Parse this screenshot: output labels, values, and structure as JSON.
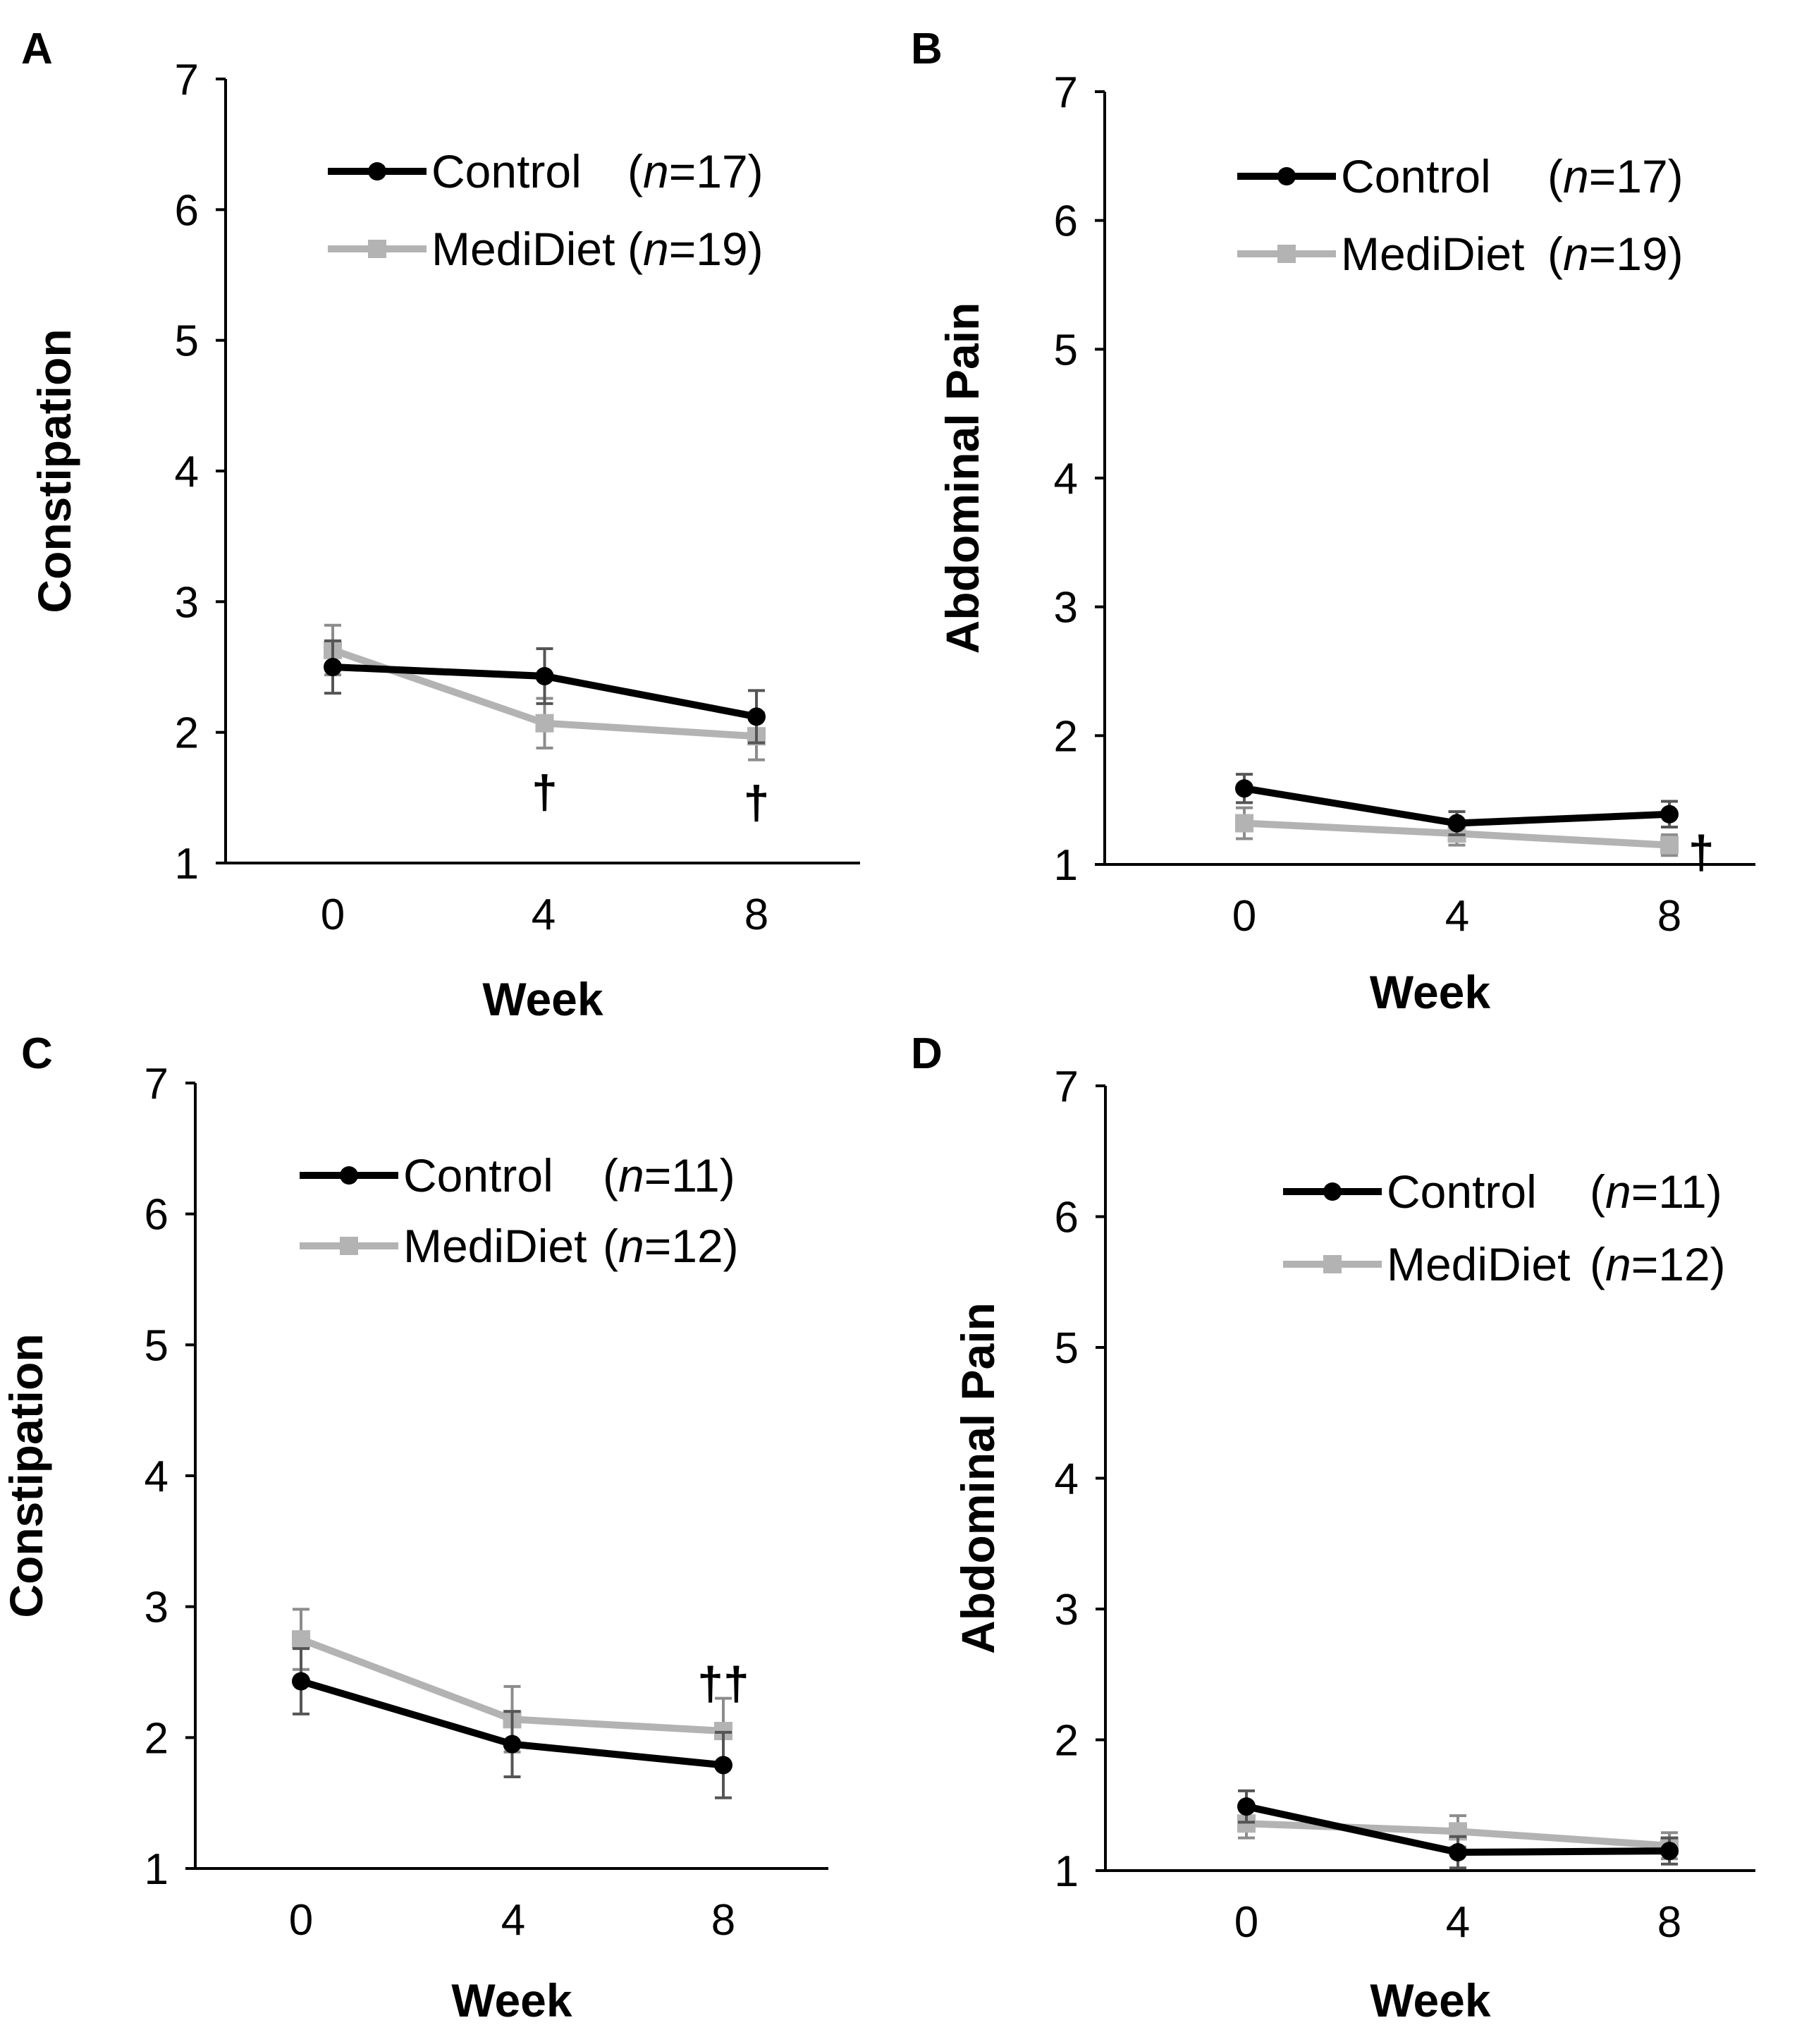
{
  "chart_data": [
    {
      "type": "line",
      "panel": "A",
      "xlabel": "Week",
      "ylabel": "Constipation",
      "ylim": [
        1,
        7
      ],
      "yticks": [
        "1",
        "2",
        "3",
        "4",
        "5",
        "6",
        "7"
      ],
      "x": [
        0,
        4,
        8
      ],
      "xticks": [
        "0",
        "4",
        "8"
      ],
      "legend_position": "top",
      "series": [
        {
          "name": "Control",
          "n_label": "(n=17)",
          "n_prefix": "(",
          "n_var": "n",
          "n_rest": "=17)",
          "color": "#000000",
          "marker": "circle",
          "values": [
            2.5,
            2.43,
            2.12
          ],
          "errors": [
            0.2,
            0.21,
            0.2
          ]
        },
        {
          "name": "MediDiet",
          "n_label": "(n=19)",
          "n_prefix": "(",
          "n_var": "n",
          "n_rest": "=19)",
          "color": "#b3b3b3",
          "marker": "square",
          "values": [
            2.63,
            2.07,
            1.97
          ],
          "errors": [
            0.19,
            0.19,
            0.18
          ]
        }
      ],
      "annotations": [
        {
          "text": "†",
          "x": 4,
          "y": 1.55
        },
        {
          "text": "†",
          "x": 8,
          "y": 1.47
        }
      ]
    },
    {
      "type": "line",
      "panel": "B",
      "xlabel": "Week",
      "ylabel": "Abdominal Pain",
      "ylim": [
        1,
        7
      ],
      "yticks": [
        "1",
        "2",
        "3",
        "4",
        "5",
        "6",
        "7"
      ],
      "x": [
        0,
        4,
        8
      ],
      "xticks": [
        "0",
        "4",
        "8"
      ],
      "legend_position": "top",
      "series": [
        {
          "name": "Control",
          "n_label": "(n=17)",
          "n_prefix": "(",
          "n_var": "n",
          "n_rest": "=17)",
          "color": "#000000",
          "marker": "circle",
          "values": [
            1.59,
            1.32,
            1.39
          ],
          "errors": [
            0.11,
            0.09,
            0.1
          ]
        },
        {
          "name": "MediDiet",
          "n_label": "(n=19)",
          "n_prefix": "(",
          "n_var": "n",
          "n_rest": "=19)",
          "color": "#b3b3b3",
          "marker": "square",
          "values": [
            1.32,
            1.24,
            1.15
          ],
          "errors": [
            0.12,
            0.09,
            0.08
          ]
        }
      ],
      "annotations": [
        {
          "text": "†",
          "x": 8.6,
          "y": 1.1
        }
      ]
    },
    {
      "type": "line",
      "panel": "C",
      "xlabel": "Week",
      "ylabel": "Constipation",
      "ylim": [
        1,
        7
      ],
      "yticks": [
        "1",
        "2",
        "3",
        "4",
        "5",
        "6",
        "7"
      ],
      "x": [
        0,
        4,
        8
      ],
      "xticks": [
        "0",
        "4",
        "8"
      ],
      "legend_position": "top",
      "series": [
        {
          "name": "Control",
          "n_label": "(n=11)",
          "n_prefix": "(",
          "n_var": "n",
          "n_rest": "=11)",
          "color": "#000000",
          "marker": "circle",
          "values": [
            2.43,
            1.95,
            1.79
          ],
          "errors": [
            0.25,
            0.25,
            0.25
          ]
        },
        {
          "name": "MediDiet",
          "n_label": "(n=12)",
          "n_prefix": "(",
          "n_var": "n",
          "n_rest": "=12)",
          "color": "#b3b3b3",
          "marker": "square",
          "values": [
            2.75,
            2.14,
            2.05
          ],
          "errors": [
            0.23,
            0.25,
            0.25
          ]
        }
      ],
      "annotations": [
        {
          "text": "††",
          "x": 8,
          "y": 2.42
        }
      ]
    },
    {
      "type": "line",
      "panel": "D",
      "xlabel": "Week",
      "ylabel": "Abdominal Pain",
      "ylim": [
        1,
        7
      ],
      "yticks": [
        "1",
        "2",
        "3",
        "4",
        "5",
        "6",
        "7"
      ],
      "x": [
        0,
        4,
        8
      ],
      "xticks": [
        "0",
        "4",
        "8"
      ],
      "legend_position": "top",
      "series": [
        {
          "name": "Control",
          "n_label": "(n=11)",
          "n_prefix": "(",
          "n_var": "n",
          "n_rest": "=11)",
          "color": "#000000",
          "marker": "circle",
          "values": [
            1.49,
            1.14,
            1.15
          ],
          "errors": [
            0.12,
            0.12,
            0.1
          ]
        },
        {
          "name": "MediDiet",
          "n_label": "(n=12)",
          "n_prefix": "(",
          "n_var": "n",
          "n_rest": "=12)",
          "color": "#b3b3b3",
          "marker": "square",
          "values": [
            1.36,
            1.3,
            1.19
          ],
          "errors": [
            0.11,
            0.12,
            0.1
          ]
        }
      ],
      "annotations": []
    }
  ]
}
